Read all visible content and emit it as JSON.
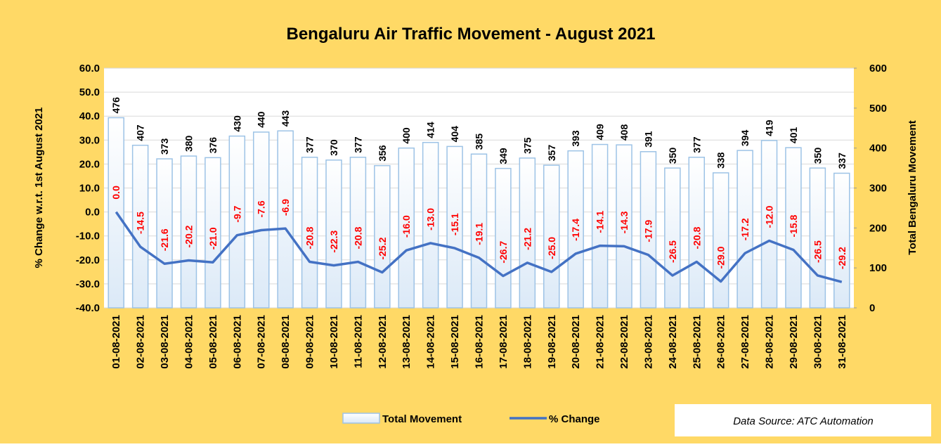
{
  "chart_data": {
    "type": "bar_line",
    "title": "Bengaluru Air Traffic Movement - August 2021",
    "ylabel": "% Change  w.r.t. 1st August 2021",
    "y2label": "Total Bengaluru Movement",
    "source": "Data Source: ATC Automation",
    "categories": [
      "01-08-2021",
      "02-08-2021",
      "03-08-2021",
      "04-08-2021",
      "05-08-2021",
      "06-08-2021",
      "07-08-2021",
      "08-08-2021",
      "09-08-2021",
      "10-08-2021",
      "11-08-2021",
      "12-08-2021",
      "13-08-2021",
      "14-08-2021",
      "15-08-2021",
      "16-08-2021",
      "17-08-2021",
      "18-08-2021",
      "19-08-2021",
      "20-08-2021",
      "21-08-2021",
      "22-08-2021",
      "23-08-2021",
      "24-08-2021",
      "25-08-2021",
      "26-08-2021",
      "27-08-2021",
      "28-08-2021",
      "29-08-2021",
      "30-08-2021",
      "31-08-2021"
    ],
    "series": [
      {
        "name": "Total Movement",
        "type": "bar",
        "axis": "y2",
        "color": "#9dc3e6",
        "values": [
          476,
          407,
          373,
          380,
          376,
          430,
          440,
          443,
          377,
          370,
          377,
          356,
          400,
          414,
          404,
          385,
          349,
          375,
          357,
          393,
          409,
          408,
          391,
          350,
          377,
          338,
          394,
          419,
          401,
          350,
          337
        ]
      },
      {
        "name": "% Change",
        "type": "line",
        "axis": "y",
        "color": "#4472c4",
        "values": [
          0.0,
          -14.5,
          -21.6,
          -20.2,
          -21.0,
          -9.7,
          -7.6,
          -6.9,
          -20.8,
          -22.3,
          -20.8,
          -25.2,
          -16.0,
          -13.0,
          -15.1,
          -19.1,
          -26.7,
          -21.2,
          -25.0,
          -17.4,
          -14.1,
          -14.3,
          -17.9,
          -26.5,
          -20.8,
          -29.0,
          -17.2,
          -12.0,
          -15.8,
          -26.5,
          -29.2
        ],
        "value_labels": [
          "0.0",
          "-14.5",
          "-21.6",
          "-20.2",
          "-21.0",
          "-9.7",
          "-7.6",
          "-6.9",
          "-20.8",
          "-22.3",
          "-20.8",
          "-25.2",
          "-16.0",
          "-13.0",
          "-15.1",
          "-19.1",
          "-26.7",
          "-21.2",
          "-25.0",
          "-17.4",
          "-14.1",
          "-14.3",
          "-17.9",
          "-26.5",
          "-20.8",
          "-29.0",
          "-17.2",
          "-12.0",
          "-15.8",
          "-26.5",
          "-29.2"
        ]
      }
    ],
    "ylim": [
      -40,
      60
    ],
    "yticks": [
      {
        "value": -40,
        "label": "-40.0"
      },
      {
        "value": -30,
        "label": "-30.0"
      },
      {
        "value": -20,
        "label": "-20.0"
      },
      {
        "value": -10,
        "label": "-10.0"
      },
      {
        "value": 0,
        "label": "0.0"
      },
      {
        "value": 10,
        "label": "10.0"
      },
      {
        "value": 20,
        "label": "20.0"
      },
      {
        "value": 30,
        "label": "30.0"
      },
      {
        "value": 40,
        "label": "40.0"
      },
      {
        "value": 50,
        "label": "50.0"
      },
      {
        "value": 60,
        "label": "60.0"
      }
    ],
    "y2lim": [
      0,
      600
    ],
    "y2ticks": [
      0,
      100,
      200,
      300,
      400,
      500,
      600
    ],
    "grid": true
  }
}
